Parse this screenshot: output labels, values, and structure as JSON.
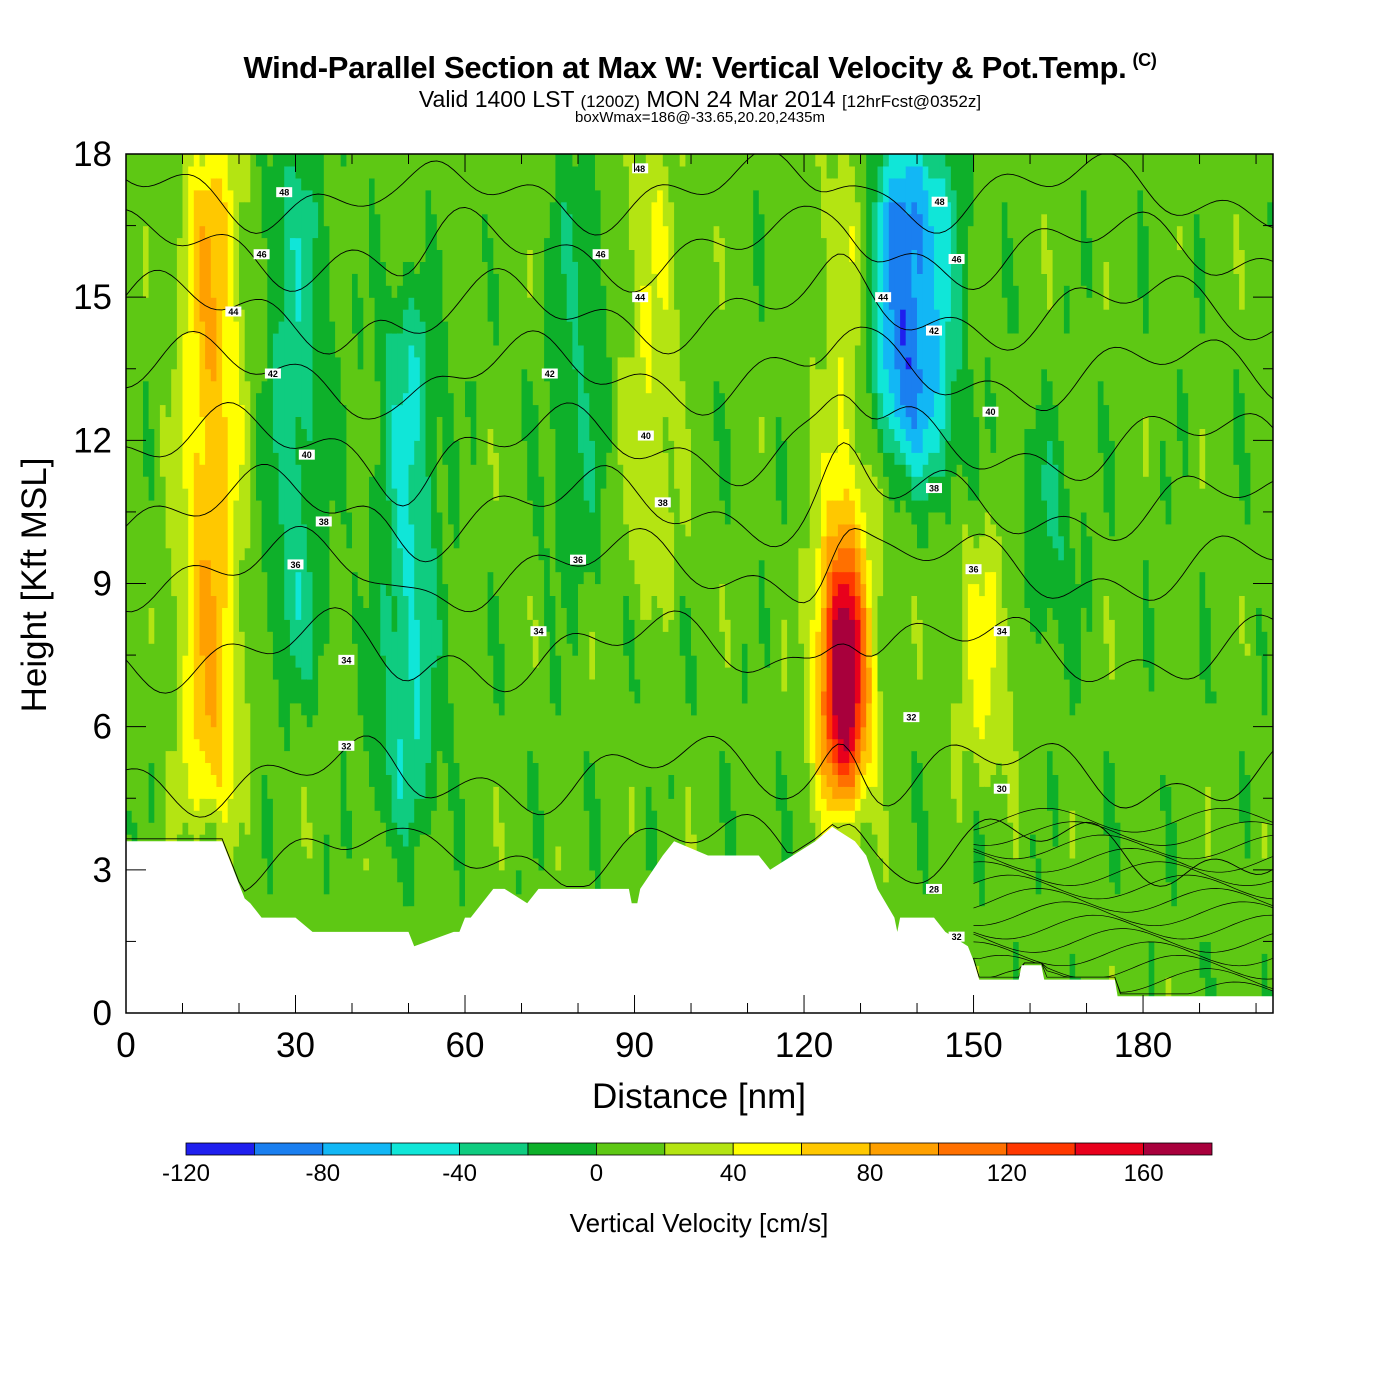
{
  "chart_data": {
    "type": "heatmap",
    "title": "Wind-Parallel Section at Max W: Vertical Velocity & Pot.Temp.",
    "title_mark": "(C)",
    "subtitle": {
      "prefix": "Valid 1400 LST",
      "utc": "(1200Z)",
      "date": "MON 24 Mar 2014",
      "forecast": "[12hrFcst@0352z]"
    },
    "annotation": "boxWmax=186@-33.65,20.20,2435m",
    "xlabel": "Distance [nm]",
    "ylabel": "Height [Kft MSL]",
    "xlim": [
      0,
      203
    ],
    "ylim": [
      0,
      18
    ],
    "x_ticks": [
      0,
      30,
      60,
      90,
      120,
      150,
      180
    ],
    "y_ticks": [
      0,
      3,
      6,
      9,
      12,
      15,
      18
    ],
    "colorbar": {
      "label": "Vertical Velocity [cm/s]",
      "bounds": [
        -120,
        -100,
        -80,
        -60,
        -40,
        -20,
        0,
        20,
        40,
        60,
        80,
        100,
        120,
        140,
        160,
        180
      ],
      "tick_labels": [
        -120,
        -80,
        -40,
        0,
        40,
        80,
        120,
        160
      ],
      "colors": [
        "#1f1fee",
        "#1a7ff0",
        "#12b7f5",
        "#10e6d8",
        "#0fcc80",
        "#0eb02a",
        "#5ec814",
        "#b4e412",
        "#ffff00",
        "#ffc800",
        "#ffa000",
        "#ff7000",
        "#ff3800",
        "#e8001c",
        "#a8003c"
      ]
    },
    "vertical_velocity_features": [
      {
        "x": 15,
        "kind": "updraft",
        "value": 70,
        "base_kft": 4.2,
        "top_kft": 18
      },
      {
        "x": 30,
        "kind": "downdraft",
        "value": -40,
        "base_kft": 7,
        "top_kft": 18
      },
      {
        "x": 50,
        "kind": "downdraft",
        "value": -50,
        "base_kft": 4,
        "top_kft": 15
      },
      {
        "x": 80,
        "kind": "downdraft",
        "value": -25,
        "base_kft": 9,
        "top_kft": 18
      },
      {
        "x": 93,
        "kind": "updraft",
        "value": 30,
        "base_kft": 9,
        "top_kft": 18
      },
      {
        "x": 127,
        "kind": "updraft",
        "value": 186,
        "base_kft": 4,
        "top_kft": 18
      },
      {
        "x": 137,
        "kind": "downdraft",
        "value": -90,
        "base_kft": 12,
        "top_kft": 18
      },
      {
        "x": 143,
        "kind": "downdraft",
        "value": -50,
        "base_kft": 11,
        "top_kft": 18
      },
      {
        "x": 152,
        "kind": "updraft",
        "value": 35,
        "base_kft": 5,
        "top_kft": 10
      },
      {
        "x": 163,
        "kind": "downdraft",
        "value": -30,
        "base_kft": 8,
        "top_kft": 12
      }
    ],
    "terrain_profile": {
      "x": [
        0,
        17,
        19,
        20,
        21,
        22,
        24,
        30,
        33,
        34,
        39,
        50,
        51,
        58,
        59,
        60,
        61,
        63,
        65,
        67,
        71,
        73,
        89,
        89.5,
        90.5,
        91,
        95,
        97,
        103,
        112,
        114,
        118,
        122,
        125,
        129,
        131,
        133,
        136,
        136.5,
        137,
        143,
        145,
        149,
        150,
        151,
        158,
        158.5,
        162,
        162.5,
        175,
        175.5,
        203
      ],
      "height_kft": [
        3.6,
        3.6,
        3.0,
        2.7,
        2.4,
        2.3,
        2.0,
        2.0,
        1.7,
        1.7,
        1.7,
        1.7,
        1.4,
        1.7,
        1.7,
        2.0,
        2.0,
        2.3,
        2.6,
        2.6,
        2.3,
        2.6,
        2.6,
        2.3,
        2.3,
        2.6,
        3.3,
        3.6,
        3.3,
        3.3,
        3.0,
        3.3,
        3.6,
        3.9,
        3.6,
        3.3,
        2.6,
        2.0,
        1.7,
        2.0,
        2.0,
        1.7,
        1.4,
        1.1,
        0.7,
        0.7,
        1.0,
        1.0,
        0.7,
        0.7,
        0.35,
        0.35
      ]
    },
    "theta_contours": [
      {
        "theta": 30,
        "base_kft": 3.4,
        "label_at": [
          155,
          4.7
        ]
      },
      {
        "theta": 32,
        "base_kft": 5.0,
        "label_at": [
          39,
          5.6
        ]
      },
      {
        "theta": 34,
        "base_kft": 7.6,
        "label_at": [
          39,
          7.4
        ]
      },
      {
        "theta": 36,
        "base_kft": 9.3,
        "label_at": [
          80,
          9.5
        ]
      },
      {
        "theta": 38,
        "base_kft": 10.6,
        "label_at": [
          95,
          10.7
        ]
      },
      {
        "theta": 40,
        "base_kft": 11.9,
        "label_at": [
          92,
          12.1
        ]
      },
      {
        "theta": 42,
        "base_kft": 13.4,
        "label_at": [
          75,
          13.4
        ]
      },
      {
        "theta": 44,
        "base_kft": 14.7,
        "label_at": [
          19,
          14.7
        ]
      },
      {
        "theta": 46,
        "base_kft": 16.0,
        "label_at": [
          24,
          15.9
        ]
      },
      {
        "theta": 48,
        "base_kft": 17.2,
        "label_at": [
          28,
          17.2
        ]
      }
    ],
    "theta_contour_labels": [
      {
        "text": "48",
        "x": 28,
        "y": 17.2
      },
      {
        "text": "48",
        "x": 91,
        "y": 17.7
      },
      {
        "text": "48",
        "x": 144,
        "y": 17.0
      },
      {
        "text": "46",
        "x": 24,
        "y": 15.9
      },
      {
        "text": "46",
        "x": 84,
        "y": 15.9
      },
      {
        "text": "46",
        "x": 147,
        "y": 15.8
      },
      {
        "text": "44",
        "x": 19,
        "y": 14.7
      },
      {
        "text": "44",
        "x": 91,
        "y": 15.0
      },
      {
        "text": "44",
        "x": 134,
        "y": 15.0
      },
      {
        "text": "42",
        "x": 26,
        "y": 13.4
      },
      {
        "text": "42",
        "x": 75,
        "y": 13.4
      },
      {
        "text": "42",
        "x": 143,
        "y": 14.3
      },
      {
        "text": "40",
        "x": 32,
        "y": 11.7
      },
      {
        "text": "40",
        "x": 92,
        "y": 12.1
      },
      {
        "text": "40",
        "x": 153,
        "y": 12.6
      },
      {
        "text": "38",
        "x": 35,
        "y": 10.3
      },
      {
        "text": "38",
        "x": 95,
        "y": 10.7
      },
      {
        "text": "38",
        "x": 143,
        "y": 11.0
      },
      {
        "text": "36",
        "x": 30,
        "y": 9.4
      },
      {
        "text": "36",
        "x": 80,
        "y": 9.5
      },
      {
        "text": "36",
        "x": 150,
        "y": 9.3
      },
      {
        "text": "34",
        "x": 39,
        "y": 7.4
      },
      {
        "text": "34",
        "x": 73,
        "y": 8.0
      },
      {
        "text": "34",
        "x": 155,
        "y": 8.0
      },
      {
        "text": "32",
        "x": 39,
        "y": 5.6
      },
      {
        "text": "32",
        "x": 139,
        "y": 6.2
      },
      {
        "text": "32",
        "x": 147,
        "y": 1.6
      },
      {
        "text": "30",
        "x": 155,
        "y": 4.7
      },
      {
        "text": "28",
        "x": 143,
        "y": 2.6
      }
    ]
  }
}
